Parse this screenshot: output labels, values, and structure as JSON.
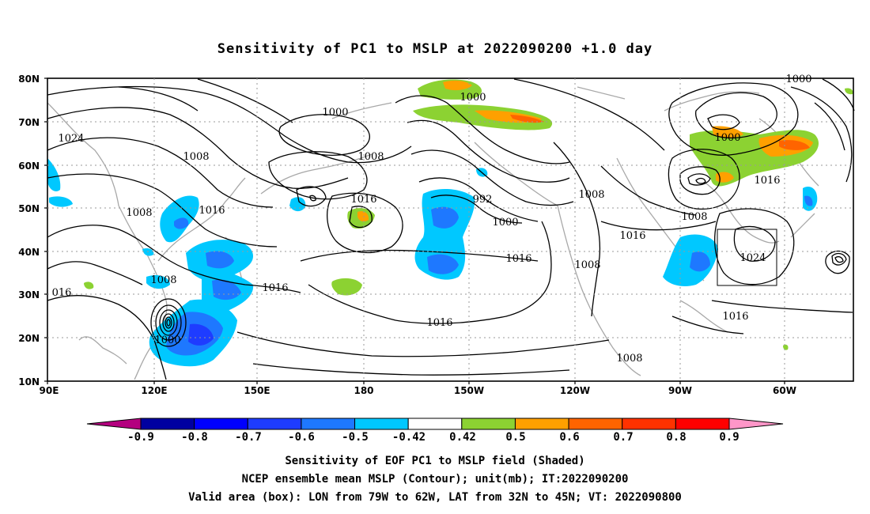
{
  "title": "Sensitivity of PC1 to MSLP at 2022090200 +1.0 day",
  "map": {
    "lat_labels": [
      "80N",
      "70N",
      "60N",
      "50N",
      "40N",
      "30N",
      "20N",
      "10N"
    ],
    "lon_labels": [
      "90E",
      "120E",
      "150E",
      "180",
      "150W",
      "120W",
      "90W",
      "60W"
    ],
    "contour_labels": [
      "1000",
      "1008",
      "1008",
      "1024",
      "1016",
      "1008",
      "1008",
      "1016",
      "1000",
      "992",
      "1000",
      "1016",
      "1008",
      "1016",
      "1024",
      "1016",
      "1008",
      "1016",
      "1016",
      "1008",
      "1000",
      "1016",
      "1000",
      "1008",
      "1000",
      "016"
    ],
    "valid_box": {
      "lon_from": "79W",
      "lon_to": "62W",
      "lat_from": "32N",
      "lat_to": "45N"
    }
  },
  "colorbar": {
    "labels": [
      "-0.9",
      "-0.8",
      "-0.7",
      "-0.6",
      "-0.5",
      "-0.42",
      "0.42",
      "0.5",
      "0.6",
      "0.7",
      "0.8",
      "0.9"
    ],
    "colors": [
      "#b4007f",
      "#0000a0",
      "#0000ff",
      "#1e3cff",
      "#1e78ff",
      "#00c8ff",
      "#ffffff",
      "#8cd232",
      "#ffa000",
      "#ff6400",
      "#ff3200",
      "#ff0000",
      "#ff96c8"
    ]
  },
  "captions": {
    "line1": "Sensitivity of EOF PC1 to MSLP field (Shaded)",
    "line2": "NCEP ensemble mean MSLP (Contour); unit(mb); IT:2022090200",
    "line3": "Valid area (box): LON from 79W to 62W, LAT from 32N to 45N; VT: 2022090800"
  }
}
